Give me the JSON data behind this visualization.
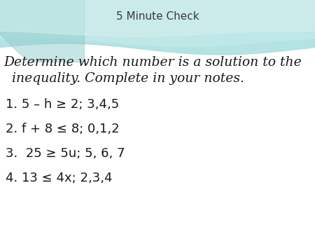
{
  "title": "5 Minute Check",
  "title_fontsize": 11,
  "title_color": "#3a3a3a",
  "bg_color": "#ffffff",
  "header_line1": "Determine which number is a solution to the",
  "header_line2": "  inequality. Complete in your notes.",
  "header_fontsize": 13.5,
  "items": [
    "1. 5 – h ≥ 2; 3,4,5",
    "2. f + 8 ≤ 8; 0,1,2",
    "3.  25 ≥ 5u; 5, 6, 7",
    "4. 13 ≤ 4x; 2,3,4"
  ],
  "item_fontsize": 13,
  "item_color": "#1a1a1a",
  "wave_color1": "#b0e0e0",
  "wave_color2": "#90d0d0",
  "wave_color3": "#a8dcdc"
}
